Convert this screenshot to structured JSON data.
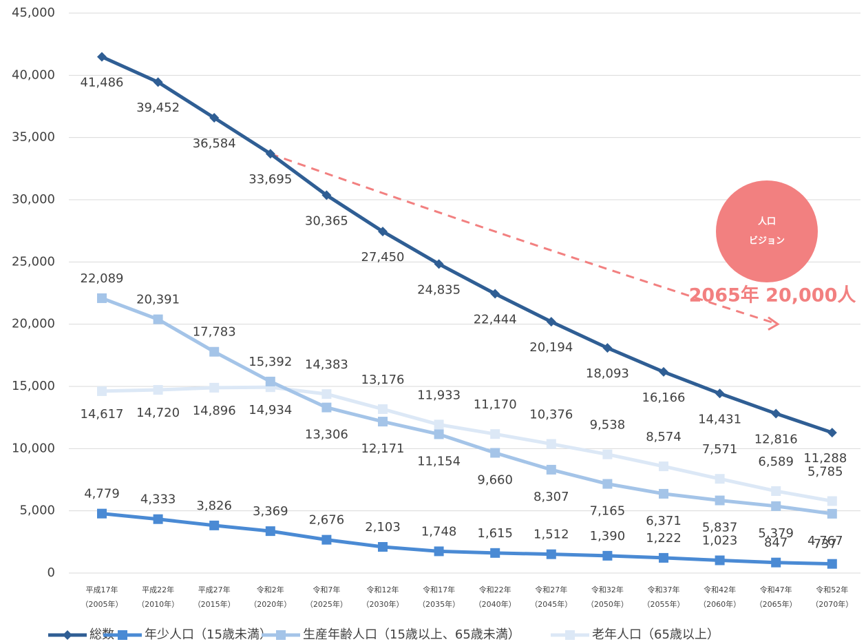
{
  "chart_data": {
    "type": "line",
    "categories": [
      [
        "平成17年",
        "（2005年）"
      ],
      [
        "平成22年",
        "（2010年）"
      ],
      [
        "平成27年",
        "（2015年）"
      ],
      [
        "令和2年",
        "（2020年）"
      ],
      [
        "令和7年",
        "（2025年）"
      ],
      [
        "令和12年",
        "（2030年）"
      ],
      [
        "令和17年",
        "（2035年）"
      ],
      [
        "令和22年",
        "（2040年）"
      ],
      [
        "令和27年",
        "（2045年）"
      ],
      [
        "令和32年",
        "（2050年）"
      ],
      [
        "令和37年",
        "（2055年）"
      ],
      [
        "令和42年",
        "（2060年）"
      ],
      [
        "令和47年",
        "（2065年）"
      ],
      [
        "令和52年",
        "（2070年）"
      ]
    ],
    "series": [
      {
        "name": "総数",
        "color": "#2f5e94",
        "marker": "diamond",
        "values": [
          41486,
          39452,
          36584,
          33695,
          30365,
          27450,
          24835,
          22444,
          20194,
          18093,
          16166,
          14431,
          12816,
          11288
        ],
        "value_labels": [
          "41,486",
          "39,452",
          "36,584",
          "33,695",
          "30,365",
          "27,450",
          "24,835",
          "22,444",
          "20,194",
          "18,093",
          "16,166",
          "14,431",
          "12,816",
          "11,288"
        ]
      },
      {
        "name": "年少人口（15歳未満）",
        "color": "#4a8ad4",
        "marker": "square",
        "values": [
          4779,
          4333,
          3826,
          3369,
          2676,
          2103,
          1748,
          1615,
          1512,
          1390,
          1222,
          1023,
          847,
          737
        ],
        "value_labels": [
          "4,779",
          "4,333",
          "3,826",
          "3,369",
          "2,676",
          "2,103",
          "1,748",
          "1,615",
          "1,512",
          "1,390",
          "1,222",
          "1,023",
          "847",
          "737"
        ]
      },
      {
        "name": "生産年齢人口（15歳以上、65歳未満）",
        "color": "#a4c4e8",
        "marker": "square",
        "values": [
          22089,
          20391,
          17783,
          15392,
          13306,
          12171,
          11154,
          9660,
          8307,
          7165,
          6371,
          5837,
          5379,
          4767
        ],
        "value_labels": [
          "22,089",
          "20,391",
          "17,783",
          "15,392",
          "13,306",
          "12,171",
          "11,154",
          "9,660",
          "8,307",
          "7,165",
          "6,371",
          "5,837",
          "5,379",
          "4,767"
        ]
      },
      {
        "name": "老年人口（65歳以上）",
        "color": "#dce8f6",
        "marker": "square",
        "values": [
          14617,
          14720,
          14896,
          14934,
          14383,
          13176,
          11933,
          11170,
          10376,
          9538,
          8574,
          7571,
          6589,
          5785
        ],
        "value_labels": [
          "14,617",
          "14,720",
          "14,896",
          "14,934",
          "14,383",
          "13,176",
          "11,933",
          "11,170",
          "10,376",
          "9,538",
          "8,574",
          "7,571",
          "6,589",
          "5,785"
        ]
      }
    ],
    "ylim": [
      0,
      45000
    ],
    "yticks": [
      0,
      {
        "value": 5000,
        "label": "5,000"
      },
      {
        "value": 10000,
        "label": "10,000"
      },
      {
        "value": 15000,
        "label": "15,000"
      },
      {
        "value": 20000,
        "label": "20,000"
      },
      {
        "value": 25000,
        "label": "25,000"
      },
      {
        "value": 30000,
        "label": "30,000"
      },
      {
        "value": 35000,
        "label": "35,000"
      },
      {
        "value": 40000,
        "label": "40,000"
      },
      {
        "value": 45000,
        "label": "45,000"
      }
    ],
    "grid": true,
    "legend": "bottom",
    "annotation": {
      "text": "2065年 20,000人",
      "target_value": 20000,
      "circle_text": [
        "人口",
        "ビジョン"
      ],
      "color": "#f28080"
    }
  }
}
